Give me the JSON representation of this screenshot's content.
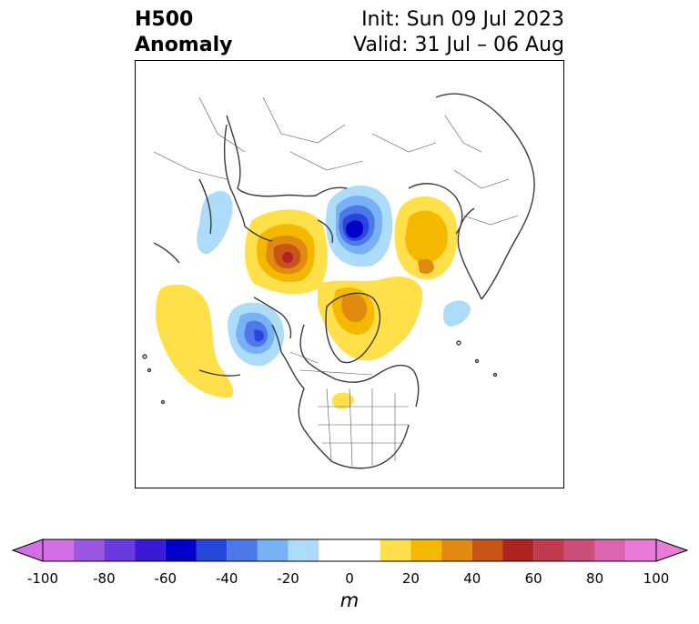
{
  "title": {
    "left_line1": "H500",
    "left_line2": "Anomaly",
    "init": "Init: Sun 09 Jul 2023",
    "valid": "Valid: 31 Jul – 06 Aug"
  },
  "colorbar": {
    "unit": "m",
    "ticks": [
      "-100",
      "-80",
      "-60",
      "-40",
      "-20",
      "0",
      "20",
      "40",
      "60",
      "80",
      "100"
    ],
    "colors": [
      "#d46ee6",
      "#9c56e0",
      "#6a3ae0",
      "#3a1ad6",
      "#0000c8",
      "#2646dc",
      "#4e78e8",
      "#78b2f6",
      "#acdcfa",
      "#ffffff",
      "#ffe04a",
      "#f5b800",
      "#e08a10",
      "#c85418",
      "#b02420",
      "#c03a50",
      "#cc4e7a",
      "#da66b0",
      "#e87ad8"
    ],
    "extend_low_color": "#d46ee6",
    "extend_high_color": "#e87ad8"
  }
}
